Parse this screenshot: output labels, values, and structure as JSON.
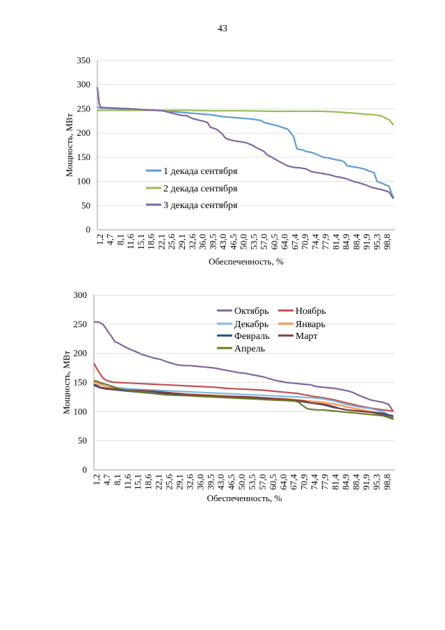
{
  "page": {
    "number": "43"
  },
  "chart_data": [
    {
      "type": "line",
      "xlabel": "Обеспеченность, %",
      "ylabel": "Мощность, МВт",
      "ylim": [
        0,
        350
      ],
      "yticks": [
        0,
        50,
        100,
        150,
        200,
        250,
        300,
        350
      ],
      "xlim": [
        0,
        100
      ],
      "xticks": [
        "1,2",
        "4,7",
        "8,1",
        "11,6",
        "15,1",
        "18,6",
        "22,1",
        "25,6",
        "29,1",
        "32,6",
        "36,0",
        "39,5",
        "43,0",
        "46,5",
        "50,0",
        "53,5",
        "57,0",
        "60,5",
        "64,0",
        "67,4",
        "70,9",
        "74,4",
        "77,9",
        "81,4",
        "84,9",
        "88,4",
        "91,9",
        "95,3",
        "98,8"
      ],
      "grid": true,
      "legend": "left",
      "series": [
        {
          "name": "1 декада сентября",
          "color": "#5b9bd5",
          "x": [
            0,
            1.2,
            4,
            8,
            12,
            16,
            20,
            24,
            28,
            30,
            32,
            34,
            36,
            38,
            40,
            42,
            44,
            46,
            48,
            50,
            52,
            54,
            55,
            56,
            58,
            60,
            62,
            63,
            64,
            65,
            66,
            67,
            68,
            69,
            70,
            72,
            74,
            76,
            78,
            80,
            82,
            83,
            84,
            86,
            88,
            90,
            91,
            92,
            93,
            94,
            96,
            98,
            99.5
          ],
          "y": [
            254,
            252,
            251,
            250,
            249,
            248,
            247,
            245,
            243,
            242,
            241,
            240,
            239,
            238,
            236,
            234,
            233,
            232,
            231,
            230,
            229,
            227,
            226,
            222,
            219,
            216,
            212,
            210,
            208,
            200,
            192,
            168,
            166,
            165,
            162,
            160,
            155,
            150,
            148,
            145,
            143,
            140,
            132,
            130,
            128,
            125,
            122,
            120,
            118,
            100,
            95,
            90,
            65
          ]
        },
        {
          "name": "2 декада сентября",
          "color": "#9bbb59",
          "x": [
            0,
            5,
            10,
            20,
            30,
            40,
            50,
            60,
            70,
            75,
            80,
            84,
            87,
            90,
            93,
            94,
            95,
            96,
            97,
            98,
            99,
            99.5
          ],
          "y": [
            247,
            247,
            247,
            247,
            247,
            246,
            246,
            245,
            245,
            245,
            244,
            242,
            241,
            239,
            238,
            237,
            236,
            234,
            230,
            228,
            221,
            216
          ]
        },
        {
          "name": "3 декада сентября",
          "color": "#8064a2",
          "x": [
            0,
            0.6,
            1.2,
            4,
            8,
            12,
            16,
            20,
            22,
            24,
            26,
            28,
            30,
            32,
            34,
            36,
            37,
            38,
            40,
            42,
            43,
            44,
            46,
            48,
            50,
            52,
            54,
            56,
            57,
            58,
            60,
            62,
            64,
            66,
            68,
            69,
            70,
            72,
            74,
            76,
            78,
            80,
            82,
            84,
            86,
            88,
            90,
            92,
            94,
            96,
            98,
            99.5
          ],
          "y": [
            295,
            262,
            253,
            252,
            251,
            250,
            248,
            247,
            246,
            243,
            240,
            237,
            236,
            230,
            227,
            224,
            222,
            212,
            208,
            198,
            190,
            187,
            184,
            182,
            180,
            175,
            168,
            162,
            155,
            152,
            145,
            138,
            132,
            129,
            128,
            127,
            126,
            120,
            118,
            116,
            114,
            110,
            108,
            105,
            100,
            97,
            93,
            88,
            85,
            82,
            78,
            64
          ]
        }
      ]
    },
    {
      "type": "line",
      "xlabel": "Обеспеченность, %",
      "ylabel": "Мощность, МВт",
      "ylim": [
        0,
        300
      ],
      "yticks": [
        0,
        50,
        100,
        150,
        200,
        250,
        300
      ],
      "xlim": [
        0,
        100
      ],
      "xticks": [
        "1,2",
        "4,7",
        "8,1",
        "11,6",
        "15,1",
        "18,6",
        "22,1",
        "25,6",
        "29,1",
        "32,6",
        "36,0",
        "39,5",
        "43,0",
        "46,5",
        "50,0",
        "53,5",
        "57,0",
        "60,5",
        "64,0",
        "67,4",
        "70,9",
        "74,4",
        "77,9",
        "81,4",
        "84,9",
        "88,4",
        "91,9",
        "95,3",
        "98,8"
      ],
      "grid": true,
      "legend": "top-right",
      "series": [
        {
          "name": "Октябрь",
          "color": "#8064a2",
          "x": [
            0,
            1.2,
            2,
            3,
            4,
            5,
            6,
            7,
            8,
            10,
            12,
            14,
            16,
            18,
            20,
            22,
            24,
            26,
            28,
            30,
            32,
            34,
            36,
            38,
            40,
            42,
            44,
            46,
            48,
            50,
            52,
            54,
            56,
            58,
            60,
            62,
            64,
            66,
            68,
            70,
            72,
            74,
            76,
            78,
            80,
            82,
            84,
            86,
            88,
            90,
            92,
            94,
            96,
            98,
            99.5
          ],
          "y": [
            254,
            254,
            253,
            250,
            243,
            235,
            228,
            220,
            218,
            212,
            207,
            203,
            198,
            195,
            192,
            190,
            186,
            183,
            180,
            179,
            179,
            178,
            177,
            176,
            175,
            173,
            171,
            169,
            167,
            166,
            164,
            162,
            160,
            157,
            154,
            152,
            150,
            149,
            148,
            147,
            146,
            143,
            142,
            141,
            140,
            138,
            136,
            133,
            128,
            124,
            120,
            118,
            116,
            112,
            100
          ]
        },
        {
          "name": "Ноябрь",
          "color": "#c0504d",
          "x": [
            0,
            1.2,
            2,
            3,
            4,
            6,
            8,
            12,
            16,
            20,
            24,
            28,
            32,
            36,
            40,
            44,
            48,
            52,
            56,
            60,
            64,
            68,
            72,
            76,
            80,
            84,
            88,
            92,
            96,
            99.5
          ],
          "y": [
            183,
            172,
            165,
            158,
            154,
            151,
            150,
            149,
            148,
            147,
            146,
            145,
            144,
            143,
            142,
            140,
            139,
            138,
            137,
            135,
            133,
            131,
            127,
            124,
            120,
            115,
            110,
            106,
            103,
            101
          ]
        },
        {
          "name": "Декабрь",
          "color": "#7fb8e0",
          "x": [
            0,
            1.2,
            2,
            4,
            6,
            8,
            12,
            16,
            20,
            24,
            28,
            32,
            36,
            40,
            44,
            48,
            52,
            56,
            60,
            64,
            68,
            72,
            76,
            80,
            84,
            88,
            92,
            96,
            99.5
          ],
          "y": [
            152,
            150,
            149,
            147,
            144,
            141,
            139,
            138,
            137,
            136,
            135,
            134,
            133,
            132,
            131,
            130,
            129,
            128,
            127,
            126,
            125,
            124,
            122,
            118,
            112,
            108,
            105,
            100,
            90
          ]
        },
        {
          "name": "Январь",
          "color": "#f79646",
          "x": [
            0,
            1.2,
            2,
            4,
            6,
            8,
            12,
            16,
            20,
            24,
            28,
            32,
            36,
            40,
            44,
            48,
            52,
            56,
            60,
            64,
            68,
            72,
            76,
            80,
            84,
            88,
            92,
            96,
            99.5
          ],
          "y": [
            151,
            149,
            147,
            143,
            140,
            138,
            136,
            134,
            133,
            132,
            131,
            130,
            129,
            128,
            127,
            126,
            125,
            124,
            123,
            122,
            120,
            118,
            116,
            113,
            108,
            104,
            100,
            97,
            93
          ]
        },
        {
          "name": "Февраль",
          "color": "#1f4e9c",
          "x": [
            0,
            1.2,
            2,
            4,
            6,
            8,
            12,
            16,
            20,
            24,
            28,
            32,
            36,
            40,
            44,
            48,
            52,
            56,
            60,
            64,
            68,
            72,
            76,
            80,
            84,
            88,
            92,
            96,
            99.5
          ],
          "y": [
            145,
            143,
            141,
            139,
            138,
            137,
            135,
            133,
            132,
            131,
            130,
            129,
            128,
            127,
            126,
            125,
            124,
            123,
            122,
            121,
            118,
            115,
            112,
            107,
            103,
            101,
            99,
            97,
            92
          ]
        },
        {
          "name": "Март",
          "color": "#843c39",
          "x": [
            0,
            1.2,
            2,
            4,
            6,
            8,
            12,
            16,
            20,
            24,
            28,
            32,
            36,
            40,
            44,
            48,
            52,
            56,
            60,
            64,
            68,
            70,
            72,
            74,
            76,
            78,
            80,
            82,
            84,
            88,
            92,
            96,
            99.5
          ],
          "y": [
            147,
            145,
            142,
            140,
            139,
            138,
            137,
            136,
            135,
            133,
            131,
            129,
            128,
            127,
            126,
            126,
            125,
            124,
            122,
            121,
            119,
            118,
            115,
            114,
            113,
            111,
            108,
            105,
            103,
            101,
            99,
            95,
            88
          ]
        },
        {
          "name": "Апрель",
          "color": "#6b7a2a",
          "x": [
            0,
            1.2,
            2,
            4,
            6,
            8,
            12,
            16,
            20,
            24,
            28,
            32,
            36,
            40,
            44,
            48,
            52,
            56,
            60,
            64,
            67,
            68,
            69,
            70,
            71,
            72,
            74,
            76,
            80,
            84,
            88,
            92,
            96,
            99.5
          ],
          "y": [
            153,
            152,
            150,
            147,
            143,
            140,
            136,
            133,
            131,
            129,
            128,
            127,
            126,
            125,
            124,
            123,
            122,
            121,
            120,
            119,
            118,
            116,
            112,
            108,
            105,
            104,
            103,
            103,
            101,
            99,
            97,
            95,
            93,
            87
          ]
        }
      ]
    }
  ]
}
